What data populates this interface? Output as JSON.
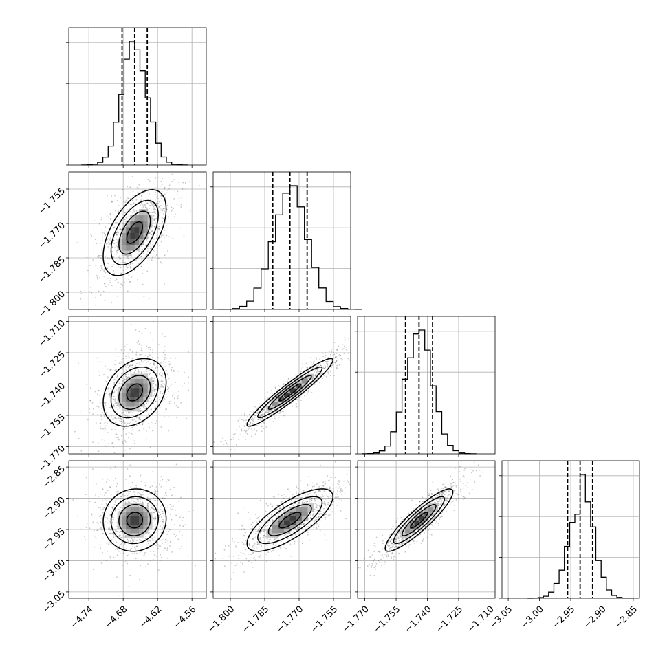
{
  "chart_data": {
    "type": "corner",
    "parameters": 4,
    "grid": true,
    "axes": [
      {
        "ticks": [
          -4.74,
          -4.68,
          -4.62,
          -4.56
        ],
        "tick_labels": [
          "−4.74",
          "−4.68",
          "−4.62",
          "−4.56"
        ],
        "range": [
          -4.775,
          -4.535
        ]
      },
      {
        "ticks": [
          -1.8,
          -1.785,
          -1.77,
          -1.755
        ],
        "tick_labels": [
          "−1.800",
          "−1.785",
          "−1.770",
          "−1.755"
        ],
        "range": [
          -1.8075,
          -1.7475
        ]
      },
      {
        "ticks": [
          -1.77,
          -1.755,
          -1.74,
          -1.725,
          -1.71
        ],
        "tick_labels": [
          "−1.770",
          "−1.755",
          "−1.740",
          "−1.725",
          "−1.710"
        ],
        "range": [
          -1.7735,
          -1.7075
        ]
      },
      {
        "ticks": [
          -3.05,
          -3.0,
          -2.95,
          -2.9,
          -2.85
        ],
        "tick_labels": [
          "−3.05",
          "−3.00",
          "−2.95",
          "−2.90",
          "−2.85"
        ],
        "range": [
          -3.06,
          -2.84
        ]
      }
    ],
    "quantiles": [
      [
        -4.682,
        -4.66,
        -4.638
      ],
      [
        -1.7815,
        -1.774,
        -1.7665
      ],
      [
        -1.7505,
        -1.744,
        -1.7375
      ],
      [
        -2.955,
        -2.935,
        -2.915
      ]
    ],
    "medians": [
      -4.66,
      -1.774,
      -1.744,
      -2.935
    ],
    "correlations": [
      [
        1.0,
        0.55,
        0.3,
        0.05
      ],
      [
        0.55,
        1.0,
        0.95,
        0.75
      ],
      [
        0.3,
        0.95,
        1.0,
        0.9
      ],
      [
        0.05,
        0.75,
        0.9,
        1.0
      ]
    ],
    "spreads": [
      0.022,
      0.0075,
      0.0065,
      0.02
    ],
    "hist_ytick_fractions": [
      0.0,
      0.33,
      0.66,
      0.99
    ],
    "contour_levels_sigma": [
      0.5,
      1.0,
      1.5,
      2.0
    ]
  }
}
